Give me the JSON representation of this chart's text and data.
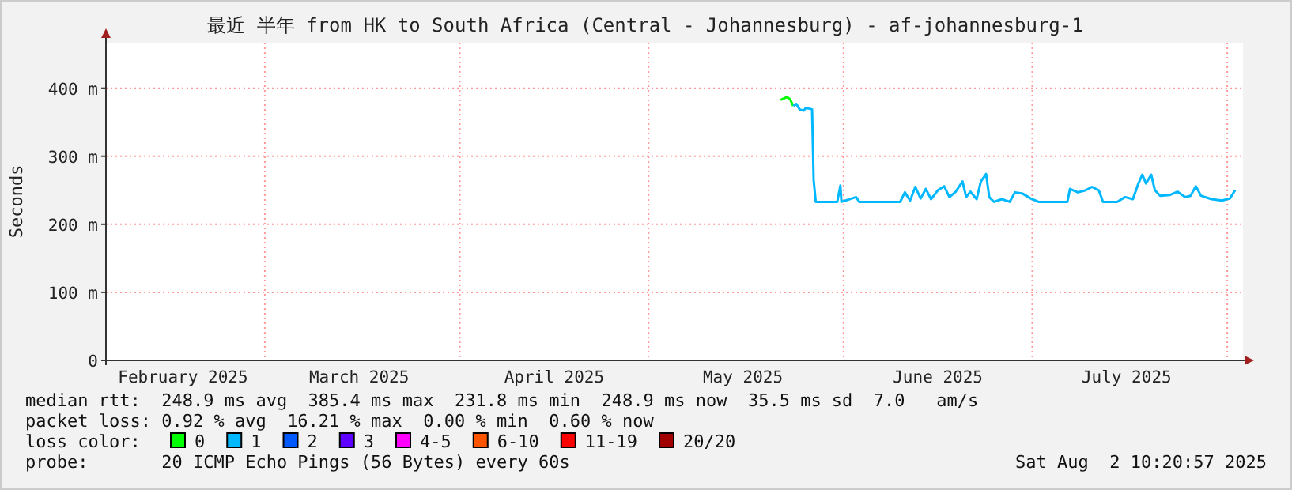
{
  "chart_data": {
    "type": "line",
    "title": "最近 半年 from HK to South Africa (Central - Johannesburg) - af-johannesburg-1",
    "ylabel": "Seconds",
    "xlim": [
      "2025-02-03T18:00",
      "2025-08-03T12:00"
    ],
    "xticks": [
      {
        "value": "2025-02-16",
        "label": "February 2025"
      },
      {
        "value": "2025-03-01",
        "label": null
      },
      {
        "value": "2025-03-16",
        "label": "March 2025"
      },
      {
        "value": "2025-04-01",
        "label": null
      },
      {
        "value": "2025-04-16",
        "label": "April 2025"
      },
      {
        "value": "2025-05-01",
        "label": null
      },
      {
        "value": "2025-05-16",
        "label": "May 2025"
      },
      {
        "value": "2025-06-01",
        "label": null
      },
      {
        "value": "2025-06-16",
        "label": "June 2025"
      },
      {
        "value": "2025-07-01",
        "label": null
      },
      {
        "value": "2025-07-16",
        "label": "July 2025"
      },
      {
        "value": "2025-08-01",
        "label": null
      }
    ],
    "ylim": [
      0,
      467
    ],
    "yticks": [
      {
        "value": 0,
        "label": "0"
      },
      {
        "value": 100,
        "label": "100 m"
      },
      {
        "value": 200,
        "label": "200 m"
      },
      {
        "value": 300,
        "label": "300 m"
      },
      {
        "value": 400,
        "label": "400 m"
      }
    ],
    "grid": true,
    "legend": "bottom",
    "legend_title": "loss color:",
    "marker": "none",
    "line_style": "solid",
    "series": [
      {
        "name": "0",
        "color": "#00ff00",
        "x": [
          "2025-05-22",
          "2025-05-23",
          "2025-05-23T12:00",
          "2025-05-24"
        ],
        "values": [
          383,
          387,
          384,
          374
        ]
      },
      {
        "name": "1",
        "color": "#00b8ff",
        "x": [
          "2025-05-24",
          "2025-05-24T12:00",
          "2025-05-25",
          "2025-05-25T16:00",
          "2025-05-26",
          "2025-05-27",
          "2025-05-27T06:00",
          "2025-05-27T14:00",
          "2025-05-31",
          "2025-05-31T12:00",
          "2025-05-31T16:00",
          "2025-06-03",
          "2025-06-03T12:00",
          "2025-06-10",
          "2025-06-10T18:00",
          "2025-06-11T14:00",
          "2025-06-12T10:00",
          "2025-06-13T06:00",
          "2025-06-14T02:00",
          "2025-06-14T22:00",
          "2025-06-16",
          "2025-06-17",
          "2025-06-17T20:00",
          "2025-06-18T20:00",
          "2025-06-19T22:00",
          "2025-06-20T12:00",
          "2025-06-21T04:00",
          "2025-06-22T04:00",
          "2025-06-22T20:00",
          "2025-06-23T16:00",
          "2025-06-24T04:00",
          "2025-06-24T22:00",
          "2025-06-26T04:00",
          "2025-06-27T10:00",
          "2025-06-28T06:00",
          "2025-06-29T12:00",
          "2025-06-30T18:00",
          "2025-07-02",
          "2025-07-06T14:00",
          "2025-07-07",
          "2025-07-08T06:00",
          "2025-07-09T12:00",
          "2025-07-10T12:00",
          "2025-07-11T14:00",
          "2025-07-12T06:00",
          "2025-07-14T12:00",
          "2025-07-15T18:00",
          "2025-07-17",
          "2025-07-17T20:00",
          "2025-07-18T12:00",
          "2025-07-19T02:00",
          "2025-07-19T22:00",
          "2025-07-20T12:00",
          "2025-07-21T08:00",
          "2025-07-22T20:00",
          "2025-07-24T02:00",
          "2025-07-25T08:00",
          "2025-07-26T04:00",
          "2025-07-27",
          "2025-07-27T20:00",
          "2025-07-29T12:00",
          "2025-07-31T04:00",
          "2025-08-01T10:00",
          "2025-08-02T06:00"
        ],
        "values": [
          374,
          377,
          369,
          367,
          371,
          369,
          265,
          233,
          233,
          257,
          233,
          240,
          233,
          233,
          247,
          235,
          255,
          238,
          252,
          237,
          250,
          256,
          240,
          248,
          263,
          240,
          248,
          237,
          263,
          274,
          240,
          233,
          237,
          233,
          247,
          245,
          238,
          233,
          233,
          252,
          247,
          250,
          255,
          250,
          233,
          233,
          240,
          237,
          259,
          273,
          260,
          273,
          250,
          242,
          243,
          248,
          240,
          242,
          256,
          242,
          237,
          235,
          238,
          250
        ]
      },
      {
        "name": "2",
        "color": "#0059ff"
      },
      {
        "name": "3",
        "color": "#5e00ff"
      },
      {
        "name": "4-5",
        "color": "#ff00ff"
      },
      {
        "name": "6-10",
        "color": "#ff5500"
      },
      {
        "name": "11-19",
        "color": "#ff0000"
      },
      {
        "name": "20/20",
        "color": "#a10000"
      }
    ],
    "annotations": [
      "median rtt:  248.9 ms avg  385.4 ms max  231.8 ms min  248.9 ms now  35.5 ms sd  7.0   am/s",
      "packet loss: 0.92 % avg  16.21 % max  0.00 % min  0.60 % now",
      "probe:       20 ICMP Echo Pings (56 Bytes) every 60s",
      "Sat Aug  2 10:20:57 2025"
    ]
  }
}
